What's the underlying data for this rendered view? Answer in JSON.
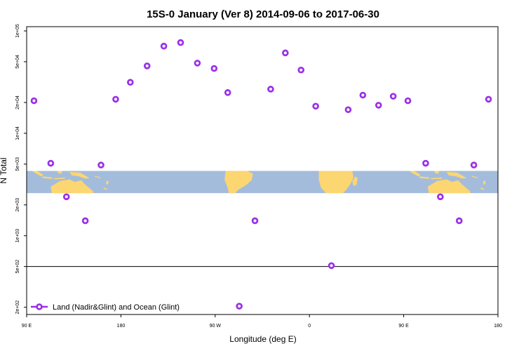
{
  "chart_data": {
    "type": "scatter",
    "title": "15S-0 January (Ver 8)   2014-09-06 to 2017-06-30",
    "xlabel": "Longitude (deg E)",
    "ylabel": "N Total",
    "x_ticks": [
      {
        "value": 90,
        "label": "90 E"
      },
      {
        "value": 180,
        "label": "180"
      },
      {
        "value": 270,
        "label": "90 W"
      },
      {
        "value": 360,
        "label": "0"
      },
      {
        "value": 450,
        "label": "90 E"
      },
      {
        "value": 540,
        "label": "180"
      }
    ],
    "xlim": [
      90,
      540
    ],
    "y_scale": "log",
    "ylim": [
      170,
      110000
    ],
    "y_ticks": [
      {
        "value": 200,
        "label": "2e+02"
      },
      {
        "value": 500,
        "label": "5e+02"
      },
      {
        "value": 1000,
        "label": "1e+03"
      },
      {
        "value": 2000,
        "label": "2e+03"
      },
      {
        "value": 5000,
        "label": "5e+03"
      },
      {
        "value": 10000,
        "label": "1e+04"
      },
      {
        "value": 20000,
        "label": "2e+04"
      },
      {
        "value": 50000,
        "label": "5e+04"
      },
      {
        "value": 100000,
        "label": "1e+05"
      }
    ],
    "reference_line_y": 500,
    "map_band": {
      "ocean_color": "#a4bcdc",
      "land_color": "#fcd671",
      "y_top": 4300,
      "y_bottom": 2600
    },
    "series": [
      {
        "name": "Land (Nadir&Glint) and Ocean (Glint)",
        "color": "#9b30e8",
        "marker": "open-circle",
        "points": [
          {
            "x": 97,
            "y": 20800
          },
          {
            "x": 113,
            "y": 5100
          },
          {
            "x": 128,
            "y": 2400
          },
          {
            "x": 146,
            "y": 1400
          },
          {
            "x": 161,
            "y": 4900
          },
          {
            "x": 175,
            "y": 21500
          },
          {
            "x": 189,
            "y": 31500
          },
          {
            "x": 205,
            "y": 45500
          },
          {
            "x": 221,
            "y": 71000
          },
          {
            "x": 237,
            "y": 77000
          },
          {
            "x": 253,
            "y": 48500
          },
          {
            "x": 269,
            "y": 43000
          },
          {
            "x": 282,
            "y": 25000
          },
          {
            "x": 293,
            "y": 205
          },
          {
            "x": 308,
            "y": 1400
          },
          {
            "x": 323,
            "y": 27000
          },
          {
            "x": 337,
            "y": 61000
          },
          {
            "x": 352,
            "y": 41500
          },
          {
            "x": 366,
            "y": 18400
          },
          {
            "x": 381,
            "y": 510
          },
          {
            "x": 397,
            "y": 17000
          },
          {
            "x": 411,
            "y": 23600
          },
          {
            "x": 426,
            "y": 18800
          },
          {
            "x": 440,
            "y": 23000
          },
          {
            "x": 454,
            "y": 20800
          },
          {
            "x": 471,
            "y": 5100
          },
          {
            "x": 485,
            "y": 2400
          },
          {
            "x": 503,
            "y": 1400
          },
          {
            "x": 517,
            "y": 4900
          },
          {
            "x": 531,
            "y": 21500
          }
        ]
      }
    ],
    "legend": {
      "position": "bottom-left"
    }
  }
}
